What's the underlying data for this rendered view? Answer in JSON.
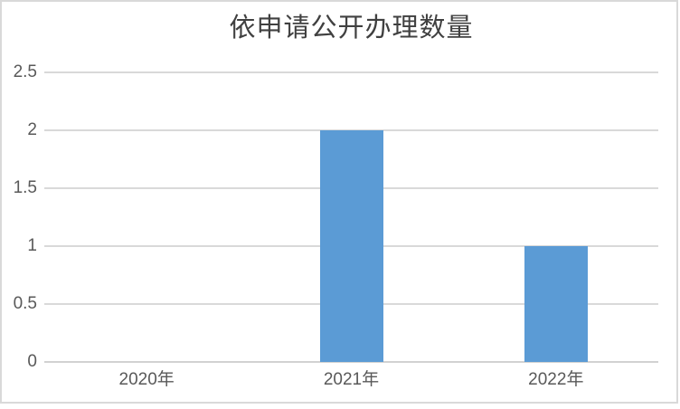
{
  "chart_data": {
    "type": "bar",
    "title": "依申请公开办理数量",
    "categories": [
      "2020年",
      "2021年",
      "2022年"
    ],
    "values": [
      0,
      2,
      1
    ],
    "ylim": [
      0,
      2.5
    ],
    "yticks": [
      0,
      0.5,
      1,
      1.5,
      2,
      2.5
    ],
    "ytick_labels": [
      "0",
      "0.5",
      "1",
      "1.5",
      "2",
      "2.5"
    ],
    "xlabel": "",
    "ylabel": "",
    "grid": "horizontal-only",
    "legend": "none",
    "colors": {
      "bar": "#5B9BD5",
      "gridline": "#D9D9D9",
      "axis_line": "#D2D2D2",
      "tick_text": "#595959",
      "title_text": "#404040",
      "frame_border": "#D9D9D9",
      "background": "#FFFFFF"
    }
  }
}
